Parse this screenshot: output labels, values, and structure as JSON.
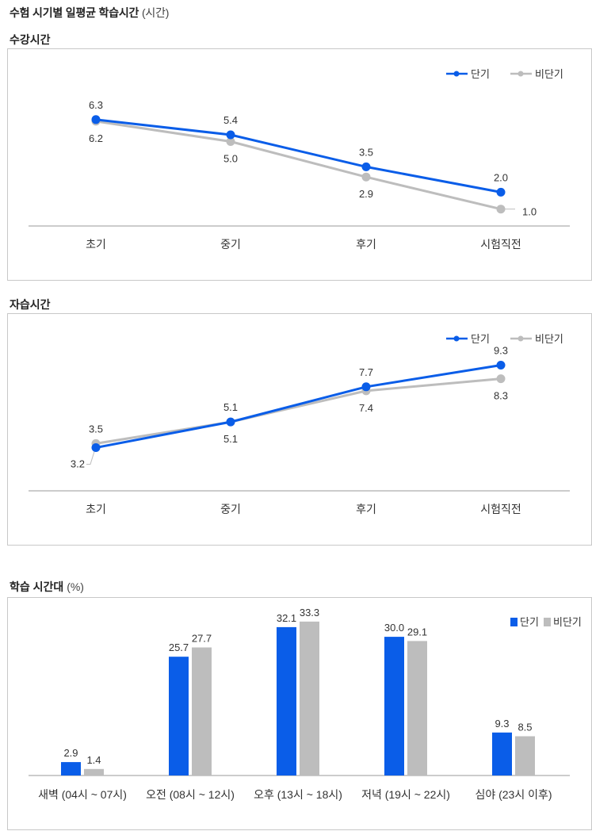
{
  "page": {
    "title": "수험 시기별 일평균 학습시간",
    "title_unit": "(시간)"
  },
  "colors": {
    "short": "#0a5de8",
    "non": "#bdbdbd",
    "axis": "#9a9a9a",
    "border": "#c8c8c8"
  },
  "legend": {
    "short": "단기",
    "non": "비단기"
  },
  "chart_data": [
    {
      "id": "lecture",
      "type": "line",
      "title": "수강시간",
      "categories": [
        "초기",
        "중기",
        "후기",
        "시험직전"
      ],
      "series": [
        {
          "name": "단기",
          "key": "short",
          "values": [
            6.3,
            5.4,
            3.5,
            2.0
          ]
        },
        {
          "name": "비단기",
          "key": "non",
          "values": [
            6.2,
            5.0,
            2.9,
            1.0
          ]
        }
      ],
      "ylim": [
        0,
        10
      ],
      "grid": false,
      "legend_position": "top-right"
    },
    {
      "id": "self",
      "type": "line",
      "title": "자습시간",
      "categories": [
        "초기",
        "중기",
        "후기",
        "시험직전"
      ],
      "series": [
        {
          "name": "단기",
          "key": "short",
          "values": [
            3.2,
            5.1,
            7.7,
            9.3
          ]
        },
        {
          "name": "비단기",
          "key": "non",
          "values": [
            3.5,
            5.1,
            7.4,
            8.3
          ]
        }
      ],
      "ylim": [
        0,
        12.5
      ],
      "grid": false,
      "legend_position": "top-right"
    },
    {
      "id": "timeslot",
      "type": "bar",
      "title": "학습 시간대",
      "title_unit": "(%)",
      "categories": [
        "새벽 (04시 ~ 07시)",
        "오전 (08시 ~ 12시)",
        "오후 (13시 ~ 18시)",
        "저녁 (19시 ~ 22시)",
        "심야 (23시 이후)"
      ],
      "series": [
        {
          "name": "단기",
          "key": "short",
          "values": [
            2.9,
            25.7,
            32.1,
            30.0,
            9.3
          ]
        },
        {
          "name": "비단기",
          "key": "non",
          "values": [
            1.4,
            27.7,
            33.3,
            29.1,
            8.5
          ]
        }
      ],
      "ylim": [
        0,
        35
      ],
      "grid": false,
      "legend_position": "top-right"
    }
  ]
}
